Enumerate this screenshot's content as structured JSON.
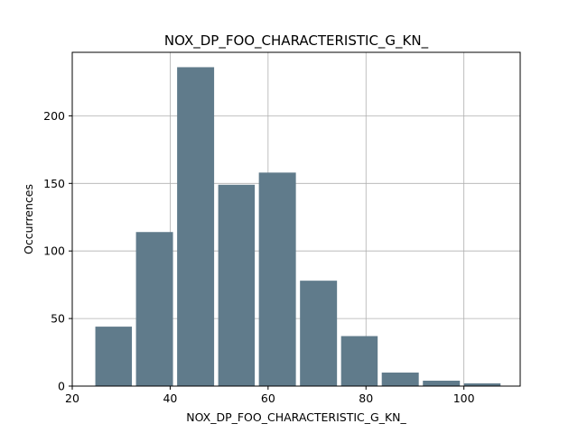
{
  "chart_data": {
    "type": "bar",
    "title": "NOX_DP_FOO_CHARACTERISTIC_G_KN_",
    "xlabel": "NOX_DP_FOO_CHARACTERISTIC_G_KN_",
    "ylabel": "Occurrences",
    "xlim": [
      20,
      111.5
    ],
    "ylim": [
      0,
      247
    ],
    "xticks": [
      20,
      40,
      60,
      80,
      100
    ],
    "yticks": [
      0,
      50,
      100,
      150,
      200
    ],
    "grid": true,
    "bar_color": "#607b8b",
    "bins": [
      {
        "start": 24.3,
        "end": 32.6,
        "count": 44
      },
      {
        "start": 32.6,
        "end": 41.0,
        "count": 114
      },
      {
        "start": 41.0,
        "end": 49.4,
        "count": 236
      },
      {
        "start": 49.4,
        "end": 57.7,
        "count": 149
      },
      {
        "start": 57.7,
        "end": 66.1,
        "count": 158
      },
      {
        "start": 66.1,
        "end": 74.5,
        "count": 78
      },
      {
        "start": 74.5,
        "end": 82.8,
        "count": 37
      },
      {
        "start": 82.8,
        "end": 91.2,
        "count": 10
      },
      {
        "start": 91.2,
        "end": 99.6,
        "count": 4
      },
      {
        "start": 99.6,
        "end": 107.9,
        "count": 2
      }
    ]
  }
}
